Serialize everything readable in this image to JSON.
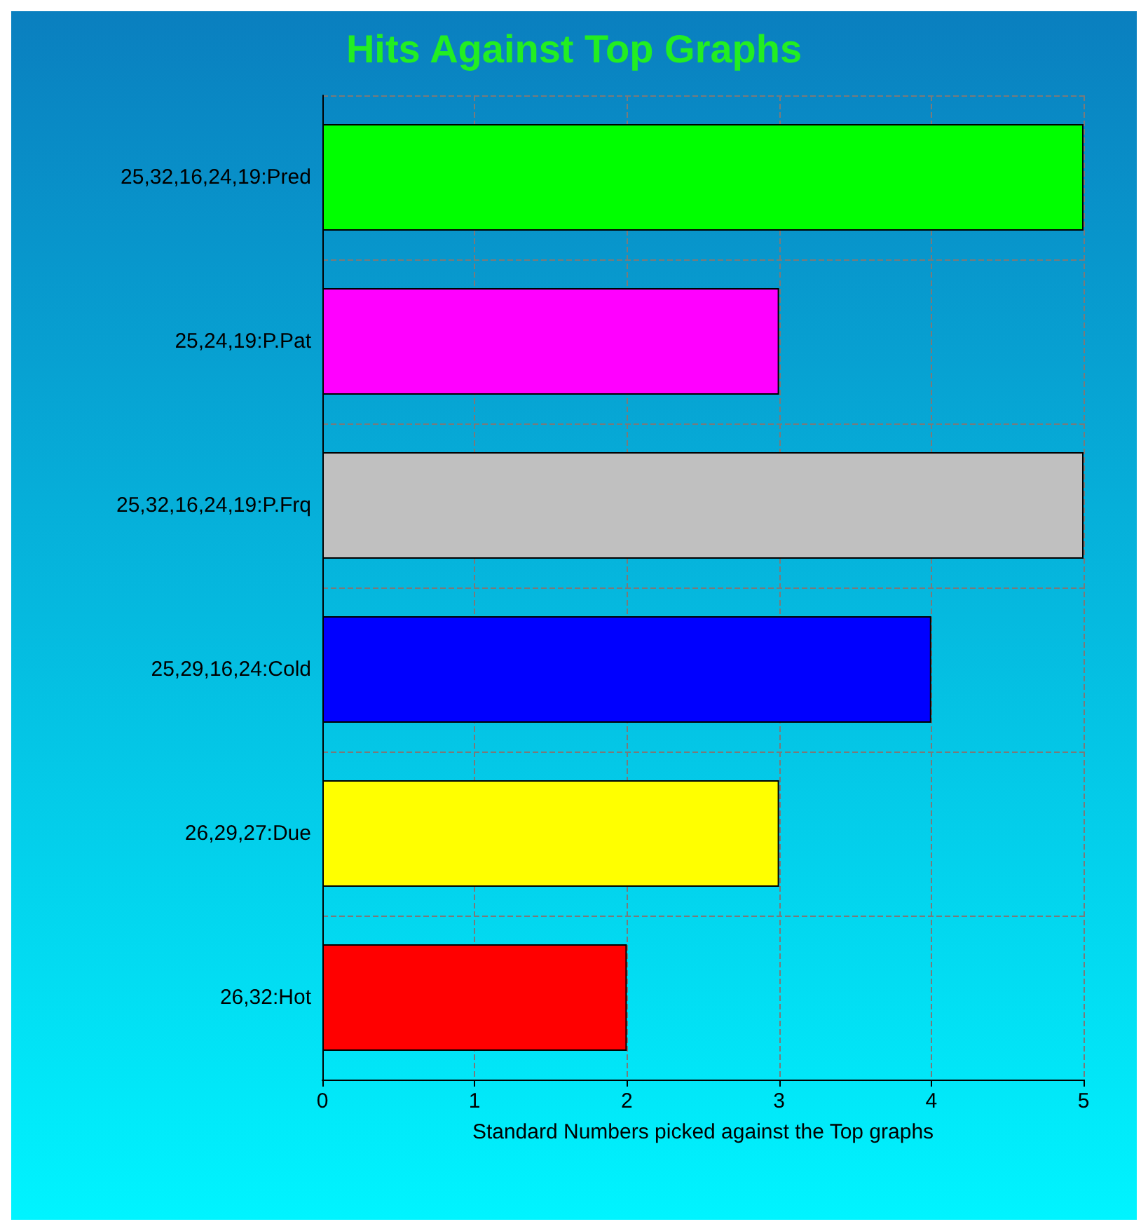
{
  "chart_data": {
    "type": "bar",
    "orientation": "horizontal",
    "title": "Hits Against Top Graphs",
    "xlabel": "Standard Numbers picked against the Top graphs",
    "categories": [
      "25,32,16,24,19:Pred",
      "25,24,19:P.Pat",
      "25,32,16,24,19:P.Frq",
      "25,29,16,24:Cold",
      "26,29,27:Due",
      "26,32:Hot"
    ],
    "values": [
      5,
      3,
      5,
      4,
      3,
      2
    ],
    "colors": [
      "#00ff00",
      "#ff00ff",
      "#c0c0c0",
      "#0000ff",
      "#ffff00",
      "#ff0000"
    ],
    "xlim": [
      0,
      5
    ],
    "xticks": [
      0,
      1,
      2,
      3,
      4,
      5
    ],
    "grid": true
  }
}
